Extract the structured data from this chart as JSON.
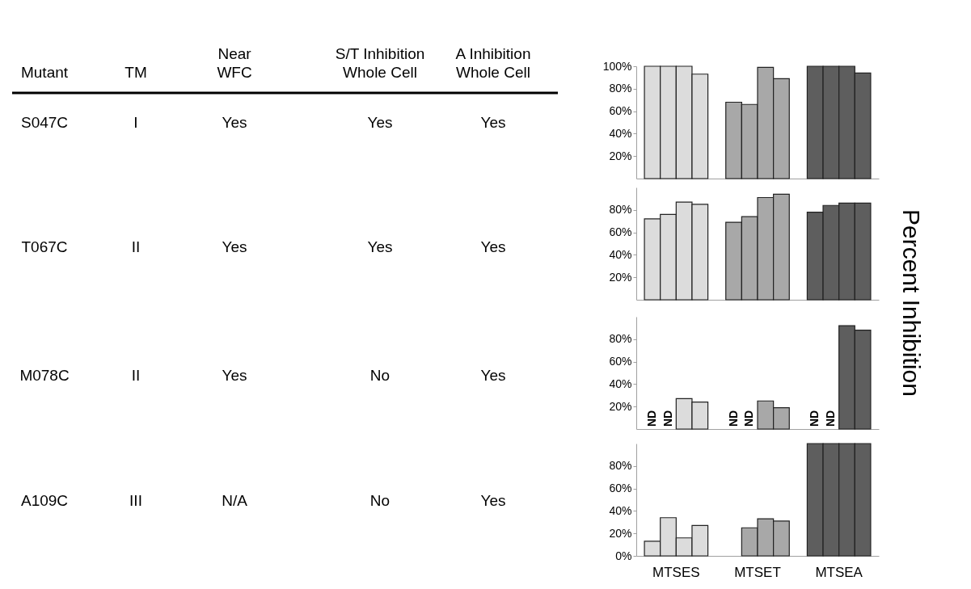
{
  "chart_data": [
    {
      "type": "other",
      "categories": [
        "Mutant",
        "TM",
        "Near\nWFC",
        "S/T Inhibition\nWhole Cell",
        "A Inhibition\nWhole Cell"
      ],
      "cell_labels": [
        [
          "S047C",
          "I",
          "Yes",
          "Yes",
          "Yes"
        ],
        [
          "T067C",
          "II",
          "Yes",
          "Yes",
          "Yes"
        ],
        [
          "M078C",
          "II",
          "Yes",
          "No",
          "Yes"
        ],
        [
          "A109C",
          "III",
          "N/A",
          "No",
          "Yes"
        ]
      ]
    },
    {
      "type": "bar",
      "ylabel": "Percent Inhibition",
      "categories": [
        null,
        null,
        null
      ],
      "series": [
        {
          "colors": [
            "#dcdcdc",
            "#a8a8a8",
            "#5e5e5e"
          ],
          "values": [
            100,
            68,
            100
          ]
        },
        {
          "colors": [
            "#dcdcdc",
            "#a8a8a8",
            "#5e5e5e"
          ],
          "values": [
            100,
            66,
            100
          ]
        },
        {
          "colors": [
            "#dcdcdc",
            "#a8a8a8",
            "#5e5e5e"
          ],
          "values": [
            100,
            99,
            100
          ]
        },
        {
          "colors": [
            "#dcdcdc",
            "#a8a8a8",
            "#5e5e5e"
          ],
          "values": [
            93,
            89,
            94
          ]
        }
      ],
      "ylim": [
        0,
        100
      ],
      "yticks": [
        {
          "value": 20,
          "label": "20%"
        },
        {
          "value": 40,
          "label": "40%"
        },
        {
          "value": 60,
          "label": "60%"
        },
        {
          "value": 80,
          "label": "80%"
        },
        {
          "value": 100,
          "label": "100%"
        }
      ],
      "tick_labels": "y"
    },
    {
      "type": "bar",
      "categories": [
        null,
        null,
        null
      ],
      "series": [
        {
          "colors": [
            "#dcdcdc",
            "#a8a8a8",
            "#5e5e5e"
          ],
          "values": [
            72,
            69,
            78
          ]
        },
        {
          "colors": [
            "#dcdcdc",
            "#a8a8a8",
            "#5e5e5e"
          ],
          "values": [
            76,
            74,
            84
          ]
        },
        {
          "colors": [
            "#dcdcdc",
            "#a8a8a8",
            "#5e5e5e"
          ],
          "values": [
            87,
            91,
            86
          ]
        },
        {
          "colors": [
            "#dcdcdc",
            "#a8a8a8",
            "#5e5e5e"
          ],
          "values": [
            85,
            94,
            86
          ]
        }
      ],
      "ylim": [
        0,
        100
      ],
      "yticks": [
        {
          "value": 20,
          "label": "20%"
        },
        {
          "value": 40,
          "label": "40%"
        },
        {
          "value": 60,
          "label": "60%"
        },
        {
          "value": 80,
          "label": "80%"
        }
      ],
      "tick_labels": "y"
    },
    {
      "type": "bar",
      "categories": [
        null,
        null,
        null
      ],
      "series": [
        {
          "colors": [
            "#dcdcdc",
            "#a8a8a8",
            "#5e5e5e"
          ],
          "values": [
            null,
            null,
            null
          ],
          "value_labels": [
            "ND",
            "ND",
            "ND"
          ]
        },
        {
          "colors": [
            "#dcdcdc",
            "#a8a8a8",
            "#5e5e5e"
          ],
          "values": [
            null,
            null,
            null
          ],
          "value_labels": [
            "ND",
            "ND",
            "ND"
          ]
        },
        {
          "colors": [
            "#dcdcdc",
            "#a8a8a8",
            "#5e5e5e"
          ],
          "values": [
            27,
            25,
            92
          ]
        },
        {
          "colors": [
            "#dcdcdc",
            "#a8a8a8",
            "#5e5e5e"
          ],
          "values": [
            24,
            19,
            88
          ]
        }
      ],
      "ylim": [
        0,
        100
      ],
      "yticks": [
        {
          "value": 20,
          "label": "20%"
        },
        {
          "value": 40,
          "label": "40%"
        },
        {
          "value": 60,
          "label": "60%"
        },
        {
          "value": 80,
          "label": "80%"
        }
      ],
      "tick_labels": "y"
    },
    {
      "type": "bar",
      "categories": [
        "MTSES",
        "MTSET",
        "MTSEA"
      ],
      "series": [
        {
          "colors": [
            "#dcdcdc",
            "#a8a8a8",
            "#5e5e5e"
          ],
          "values": [
            13,
            null,
            100
          ]
        },
        {
          "colors": [
            "#dcdcdc",
            "#a8a8a8",
            "#5e5e5e"
          ],
          "values": [
            34,
            25,
            100
          ]
        },
        {
          "colors": [
            "#dcdcdc",
            "#a8a8a8",
            "#5e5e5e"
          ],
          "values": [
            16,
            33,
            100
          ]
        },
        {
          "colors": [
            "#dcdcdc",
            "#a8a8a8",
            "#5e5e5e"
          ],
          "values": [
            27,
            31,
            100
          ]
        }
      ],
      "ylim": [
        0,
        100
      ],
      "yticks": [
        {
          "value": 0,
          "label": "0%"
        },
        {
          "value": 20,
          "label": "20%"
        },
        {
          "value": 40,
          "label": "40%"
        },
        {
          "value": 60,
          "label": "60%"
        },
        {
          "value": 80,
          "label": "80%"
        }
      ]
    }
  ]
}
